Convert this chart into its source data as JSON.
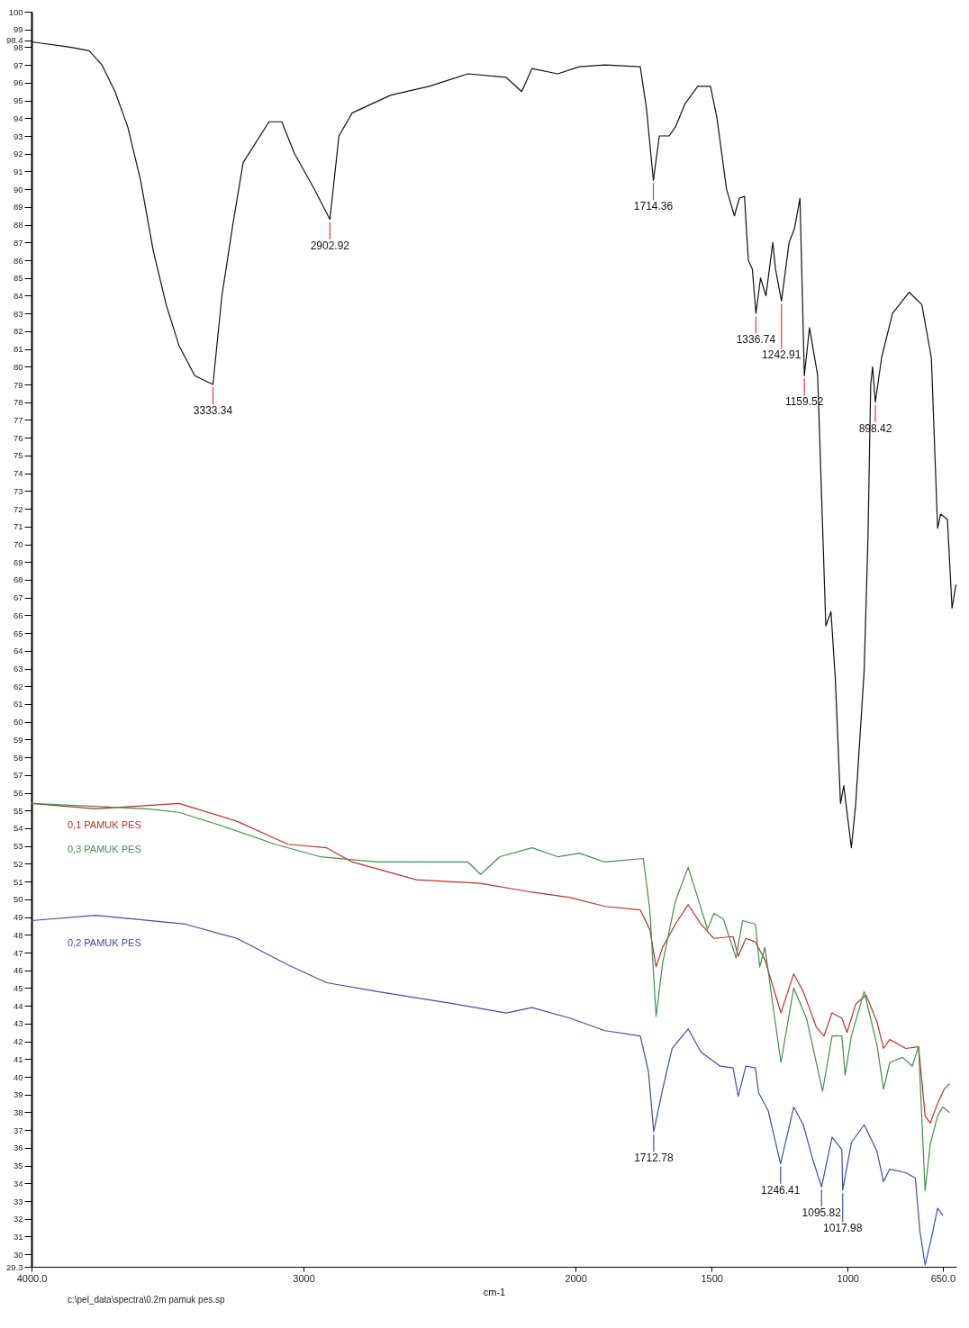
{
  "chart_data": {
    "type": "line",
    "xlabel": "cm-1",
    "xlim": [
      4000,
      600
    ],
    "xticks": [
      {
        "value": 4000,
        "label": "4000.0"
      },
      3000,
      2000,
      1500,
      1000,
      {
        "value": 650,
        "label": "650.0"
      }
    ],
    "ylim": [
      29.3,
      100
    ],
    "yticks": [
      29.3,
      30,
      31,
      32,
      33,
      34,
      35,
      36,
      37,
      38,
      39,
      40,
      41,
      42,
      43,
      44,
      45,
      46,
      47,
      48,
      49,
      50,
      51,
      52,
      53,
      54,
      55,
      56,
      57,
      58,
      59,
      60,
      61,
      62,
      63,
      64,
      65,
      66,
      67,
      68,
      69,
      70,
      71,
      72,
      73,
      74,
      75,
      76,
      77,
      78,
      79,
      80,
      81,
      82,
      83,
      84,
      85,
      86,
      87,
      88,
      89,
      90,
      91,
      92,
      93,
      94,
      95,
      96,
      97,
      98,
      98.4,
      99,
      100
    ],
    "grid": false,
    "line_style": "solid",
    "series": [
      {
        "color": "#111111",
        "x": [
          4000,
          3858,
          3788,
          3741,
          3693,
          3646,
          3599,
          3552,
          3505,
          3458,
          3400,
          3333,
          3300,
          3260,
          3222,
          3127,
          3080,
          3033,
          2960,
          2903,
          2870,
          2821,
          2679,
          2538,
          2396,
          2255,
          2198,
          2160,
          2066,
          1986,
          1892,
          1762,
          1739,
          1714,
          1692,
          1656,
          1633,
          1598,
          1551,
          1504,
          1480,
          1445,
          1416,
          1398,
          1379,
          1365,
          1350,
          1337,
          1320,
          1300,
          1275,
          1265,
          1243,
          1215,
          1195,
          1175,
          1159,
          1140,
          1110,
          1080,
          1061,
          1045,
          1026,
          1014,
          998,
          986,
          970,
          939,
          925,
          915,
          908,
          898,
          875,
          835,
          774,
          727,
          692,
          669,
          658,
          633,
          616,
          602
        ],
        "values": [
          98.3,
          98.0,
          97.8,
          97.0,
          95.5,
          93.5,
          90.5,
          86.5,
          83.5,
          81.2,
          79.5,
          79.0,
          84.0,
          88.0,
          91.5,
          93.8,
          93.8,
          92.0,
          90.0,
          88.3,
          93.0,
          94.3,
          95.3,
          95.8,
          96.5,
          96.3,
          95.5,
          96.8,
          96.5,
          96.9,
          97.0,
          96.9,
          94.5,
          90.5,
          93.0,
          93.0,
          93.5,
          94.8,
          95.8,
          95.8,
          94.0,
          90.0,
          88.5,
          89.5,
          89.6,
          86.0,
          85.5,
          83.0,
          85.0,
          84.0,
          87.0,
          85.5,
          83.7,
          87.0,
          87.8,
          89.5,
          79.5,
          82.2,
          79.5,
          65.4,
          66.2,
          62.4,
          55.4,
          56.4,
          54.4,
          52.9,
          55.4,
          62.9,
          70.4,
          79.0,
          80.0,
          78.0,
          80.5,
          83.0,
          84.2,
          83.5,
          80.5,
          70.9,
          71.7,
          71.4,
          66.4,
          67.7
        ]
      },
      {
        "name": "0,1 PAMUK PES",
        "color": "#b8322e",
        "x": [
          4000,
          3764,
          3458,
          3245,
          3057,
          2915,
          2821,
          2585,
          2349,
          2160,
          2019,
          1892,
          1762,
          1727,
          1704,
          1680,
          1633,
          1586,
          1539,
          1492,
          1421,
          1402,
          1374,
          1339,
          1304,
          1245,
          1198,
          1163,
          1115,
          1087,
          1057,
          1021,
          1002,
          970,
          932,
          892,
          868,
          845,
          786,
          739,
          715,
          696,
          669,
          645,
          626
        ],
        "values": [
          55.4,
          55.1,
          55.4,
          54.4,
          53.1,
          52.9,
          52.1,
          51.1,
          50.9,
          50.4,
          50.1,
          49.6,
          49.4,
          48.3,
          46.2,
          47.3,
          48.6,
          49.7,
          48.6,
          47.8,
          47.9,
          46.8,
          47.8,
          47.6,
          46.6,
          43.6,
          45.8,
          44.8,
          42.8,
          42.3,
          43.6,
          43.3,
          42.5,
          44.1,
          44.6,
          43.1,
          41.6,
          42.1,
          41.6,
          41.7,
          37.8,
          37.4,
          38.5,
          39.3,
          39.6
        ]
      },
      {
        "name": "0,3 PAMUK PES",
        "color": "#3f8f4a",
        "x": [
          4000,
          3576,
          3458,
          3292,
          3104,
          2939,
          2727,
          2396,
          2349,
          2278,
          2160,
          2066,
          1986,
          1892,
          1751,
          1727,
          1704,
          1680,
          1633,
          1586,
          1551,
          1515,
          1492,
          1457,
          1410,
          1386,
          1339,
          1323,
          1304,
          1245,
          1198,
          1151,
          1092,
          1057,
          1021,
          1009,
          986,
          939,
          892,
          868,
          845,
          798,
          762,
          739,
          715,
          696,
          669,
          650,
          626
        ],
        "values": [
          55.4,
          55.1,
          54.9,
          54.1,
          53.1,
          52.4,
          52.1,
          52.1,
          51.4,
          52.4,
          52.9,
          52.4,
          52.6,
          52.1,
          52.3,
          49.4,
          43.4,
          46.4,
          49.9,
          51.8,
          50.1,
          48.3,
          49.2,
          48.9,
          46.7,
          48.8,
          48.6,
          46.2,
          47.3,
          40.8,
          45.0,
          43.3,
          39.2,
          42.3,
          42.3,
          40.1,
          42.3,
          44.8,
          41.8,
          39.3,
          40.8,
          41.1,
          40.6,
          41.7,
          33.6,
          36.2,
          37.8,
          38.3,
          38.0
        ]
      },
      {
        "name": "0,2 PAMUK PES",
        "color": "#3c4fa6",
        "x": [
          4000,
          3764,
          3434,
          3245,
          3057,
          2915,
          2727,
          2443,
          2255,
          2160,
          2019,
          1892,
          1762,
          1732,
          1712.78,
          1680,
          1645,
          1586,
          1539,
          1468,
          1421,
          1402,
          1374,
          1339,
          1327,
          1292,
          1246.41,
          1198,
          1163,
          1127,
          1095.82,
          1057,
          1021,
          1017.98,
          986,
          939,
          892,
          868,
          845,
          786,
          751,
          734,
          715,
          692,
          669,
          650
        ],
        "values": [
          48.8,
          49.1,
          48.6,
          47.8,
          46.3,
          45.3,
          44.8,
          44.1,
          43.6,
          43.9,
          43.3,
          42.6,
          42.3,
          40.3,
          36.9,
          39.3,
          41.6,
          42.7,
          41.4,
          40.6,
          40.5,
          38.9,
          40.6,
          40.5,
          39.1,
          38.1,
          35.1,
          38.3,
          37.3,
          35.3,
          33.8,
          36.6,
          35.9,
          33.6,
          36.3,
          37.3,
          35.8,
          34.1,
          34.8,
          34.6,
          34.3,
          31.3,
          29.4,
          30.9,
          32.6,
          32.2
        ]
      }
    ],
    "annotations": [
      {
        "text": "3333.34",
        "x": 3333,
        "y": 79.0
      },
      {
        "text": "2902.92",
        "x": 2903,
        "y": 88.3
      },
      {
        "text": "1714.36",
        "x": 1714,
        "y": 90.5
      },
      {
        "text": "1336.74",
        "x": 1337,
        "y": 83.0
      },
      {
        "text": "1242.91",
        "x": 1243,
        "y": 83.7
      },
      {
        "text": "1159.52",
        "x": 1159,
        "y": 79.5
      },
      {
        "text": "898.42",
        "x": 898,
        "y": 78.0
      },
      {
        "text": "1712.78",
        "x": 1712.78,
        "y": 36.9
      },
      {
        "text": "1246.41",
        "x": 1246.41,
        "y": 35.1
      },
      {
        "text": "1095.82",
        "x": 1095.82,
        "y": 33.8
      },
      {
        "text": "1017.98",
        "x": 1017.98,
        "y": 33.6
      },
      "c:\\pel_data\\spectra\\0.2m pamuk pes.sp"
    ]
  }
}
